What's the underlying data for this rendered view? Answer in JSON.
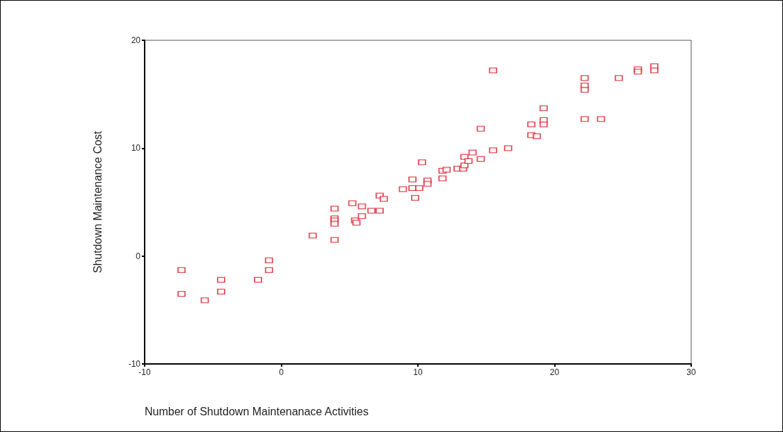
{
  "chart_data": {
    "type": "scatter",
    "xlabel": "Number of Shutdown Maintenanace Activities",
    "ylabel": "Shutdown Maintenance Cost",
    "x": [
      -7.3,
      -7.3,
      -5.6,
      -4.4,
      -4.4,
      -1.7,
      -0.9,
      -0.9,
      2.3,
      3.9,
      3.9,
      3.9,
      3.9,
      3.9,
      5.2,
      5.4,
      5.5,
      5.9,
      5.9,
      6.6,
      7.2,
      7.2,
      7.5,
      8.9,
      9.6,
      9.6,
      10.1,
      9.8,
      10.3,
      10.7,
      10.7,
      11.8,
      12.1,
      11.8,
      12.9,
      13.3,
      13.4,
      13.4,
      13.7,
      14.0,
      14.6,
      14.6,
      15.5,
      15.5,
      16.6,
      18.3,
      18.3,
      18.7,
      19.2,
      19.2,
      19.2,
      22.2,
      22.2,
      22.2,
      22.2,
      23.4,
      24.7,
      26.1,
      26.1,
      27.3,
      27.3
    ],
    "values": [
      -1.3,
      -3.5,
      -4.1,
      -2.2,
      -3.3,
      -2.2,
      -0.4,
      -1.3,
      1.9,
      4.4,
      3.5,
      3.3,
      3.0,
      1.5,
      4.9,
      3.3,
      3.1,
      4.6,
      3.7,
      4.2,
      4.2,
      5.6,
      5.3,
      6.2,
      7.1,
      6.3,
      6.3,
      5.4,
      8.7,
      7.0,
      6.7,
      7.9,
      8.0,
      7.2,
      8.1,
      8.1,
      8.4,
      9.2,
      8.8,
      9.6,
      9.0,
      11.8,
      9.8,
      17.2,
      10.0,
      12.2,
      11.2,
      11.1,
      13.7,
      12.6,
      12.2,
      16.5,
      15.8,
      15.4,
      12.7,
      12.7,
      16.5,
      17.3,
      17.1,
      17.6,
      17.2
    ],
    "color": "#d9202e",
    "marker": "square",
    "xlim": [
      -10,
      30
    ],
    "xticks": [
      -10,
      0,
      10,
      20,
      30
    ],
    "ylim": [
      -10,
      20
    ],
    "yticks": [
      -10,
      0,
      10,
      20
    ],
    "grid": false
  }
}
